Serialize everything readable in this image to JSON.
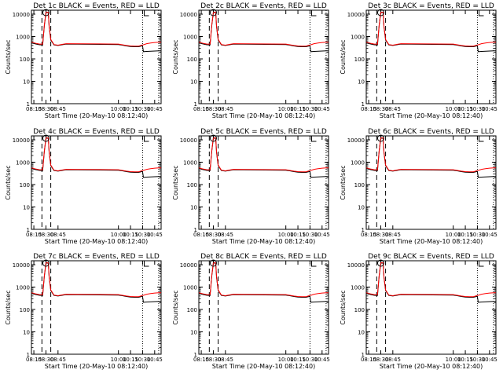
{
  "chart_data": {
    "type": "line",
    "shared": {
      "xlabel": "Start Time (20-May-10 08:12:40)",
      "ylabel": "Counts/sec",
      "x_range": [
        "08:12",
        "10:53"
      ],
      "x_ticks": [
        "08:15",
        "08:30",
        "08:45",
        "10:00",
        "10:15",
        "10:30",
        "10:45"
      ],
      "y_scale": "log",
      "ylim": [
        1,
        15000
      ],
      "y_ticks": [
        "1",
        "10",
        "100",
        "1000",
        "10000"
      ],
      "grid": false,
      "dashed_vlines": [
        "08:25",
        "08:36"
      ],
      "dotted_vlines": [
        "10:30",
        "10:50"
      ],
      "series_colors": {
        "black": "#000000",
        "red": "#ff0000"
      },
      "x": [
        "08:12",
        "08:18",
        "08:22",
        "08:26",
        "08:28",
        "08:30",
        "08:31",
        "08:33",
        "08:34",
        "08:36",
        "08:40",
        "08:45",
        "08:50",
        "08:55",
        "10:00",
        "10:05",
        "10:10",
        "10:15",
        "10:20",
        "10:25",
        "10:29",
        "10:30",
        "10:31",
        "10:35",
        "10:40",
        "10:45",
        "10:50",
        "10:53"
      ],
      "black_values": [
        520,
        460,
        430,
        420,
        3000,
        11000,
        12000,
        11500,
        2800,
        700,
        420,
        400,
        430,
        460,
        440,
        410,
        380,
        360,
        350,
        350,
        380,
        380,
        210,
        215,
        220,
        225,
        230,
        230
      ],
      "red_values": [
        560,
        490,
        460,
        460,
        3200,
        11500,
        12500,
        12000,
        3000,
        750,
        440,
        410,
        445,
        480,
        460,
        430,
        400,
        380,
        370,
        375,
        410,
        420,
        430,
        480,
        510,
        540,
        560,
        560
      ]
    },
    "panels": [
      {
        "title": "Det 1c BLACK = Events, RED = LLD"
      },
      {
        "title": "Det 2c BLACK = Events, RED = LLD"
      },
      {
        "title": "Det 3c BLACK = Events, RED = LLD"
      },
      {
        "title": "Det 4c BLACK = Events, RED = LLD"
      },
      {
        "title": "Det 5c BLACK = Events, RED = LLD"
      },
      {
        "title": "Det 6c BLACK = Events, RED = LLD"
      },
      {
        "title": "Det 7c BLACK = Events, RED = LLD"
      },
      {
        "title": "Det 8c BLACK = Events, RED = LLD"
      },
      {
        "title": "Det 9c BLACK = Events, RED = LLD"
      }
    ]
  }
}
